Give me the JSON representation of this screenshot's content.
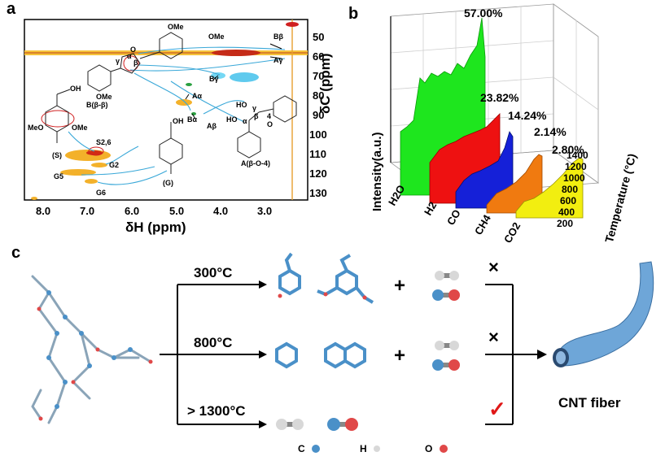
{
  "panels": {
    "a": "a",
    "b": "b",
    "c": "c"
  },
  "panel_a": {
    "xlabel": "δH (ppm)",
    "ylabel": "δC (ppm)",
    "x_ticks": [
      "8.0",
      "7.0",
      "6.0",
      "5.0",
      "4.0",
      "3.0"
    ],
    "y_ticks": [
      "50",
      "60",
      "70",
      "80",
      "90",
      "100",
      "110",
      "120",
      "130"
    ],
    "peak_labels": [
      "Bβ",
      "Aγ",
      "Bγ",
      "Aα",
      "Bα",
      "Aβ",
      "S2,6",
      "G2",
      "G5",
      "G6",
      "OMe"
    ],
    "structure_labels": [
      "B(β-β)",
      "(S)",
      "(G)",
      "A(β-O-4)",
      "OMe",
      "OMe",
      "MeO",
      "OMe",
      "OH",
      "OH",
      "HO",
      "HO",
      "α",
      "β",
      "γ",
      "α",
      "β",
      "γ",
      "4",
      "O",
      "O"
    ]
  },
  "chart_data": {
    "type": "area",
    "title": "",
    "categories": [
      "H2O",
      "H2",
      "CO",
      "CH4",
      "CO2"
    ],
    "series": [
      {
        "name": "H2O",
        "color": "#1ee61e",
        "percent": "57.00%"
      },
      {
        "name": "H2",
        "color": "#ee1111",
        "percent": "23.82%"
      },
      {
        "name": "CO",
        "color": "#1520d8",
        "percent": "14.24%"
      },
      {
        "name": "CH4",
        "color": "#f07a10",
        "percent": "2.14%"
      },
      {
        "name": "CO2",
        "color": "#f2ee10",
        "percent": "2.80%"
      }
    ],
    "ylabel": "Intensity(a.u.)",
    "zlabel": "Temperature (°C)",
    "temperature_ticks": [
      "200",
      "400",
      "600",
      "800",
      "1000",
      "1200",
      "1400"
    ]
  },
  "panel_c": {
    "temps": [
      "300°C",
      "800°C",
      "> 1300°C"
    ],
    "plus": "+",
    "cross_mark": "×",
    "check_mark": "✓",
    "product": "CNT fiber",
    "legend": {
      "C": "C",
      "H": "H",
      "O": "O"
    },
    "colors": {
      "carbon": "#4a90c8",
      "hydrogen": "#d8d8d8",
      "oxygen": "#e04848"
    }
  }
}
